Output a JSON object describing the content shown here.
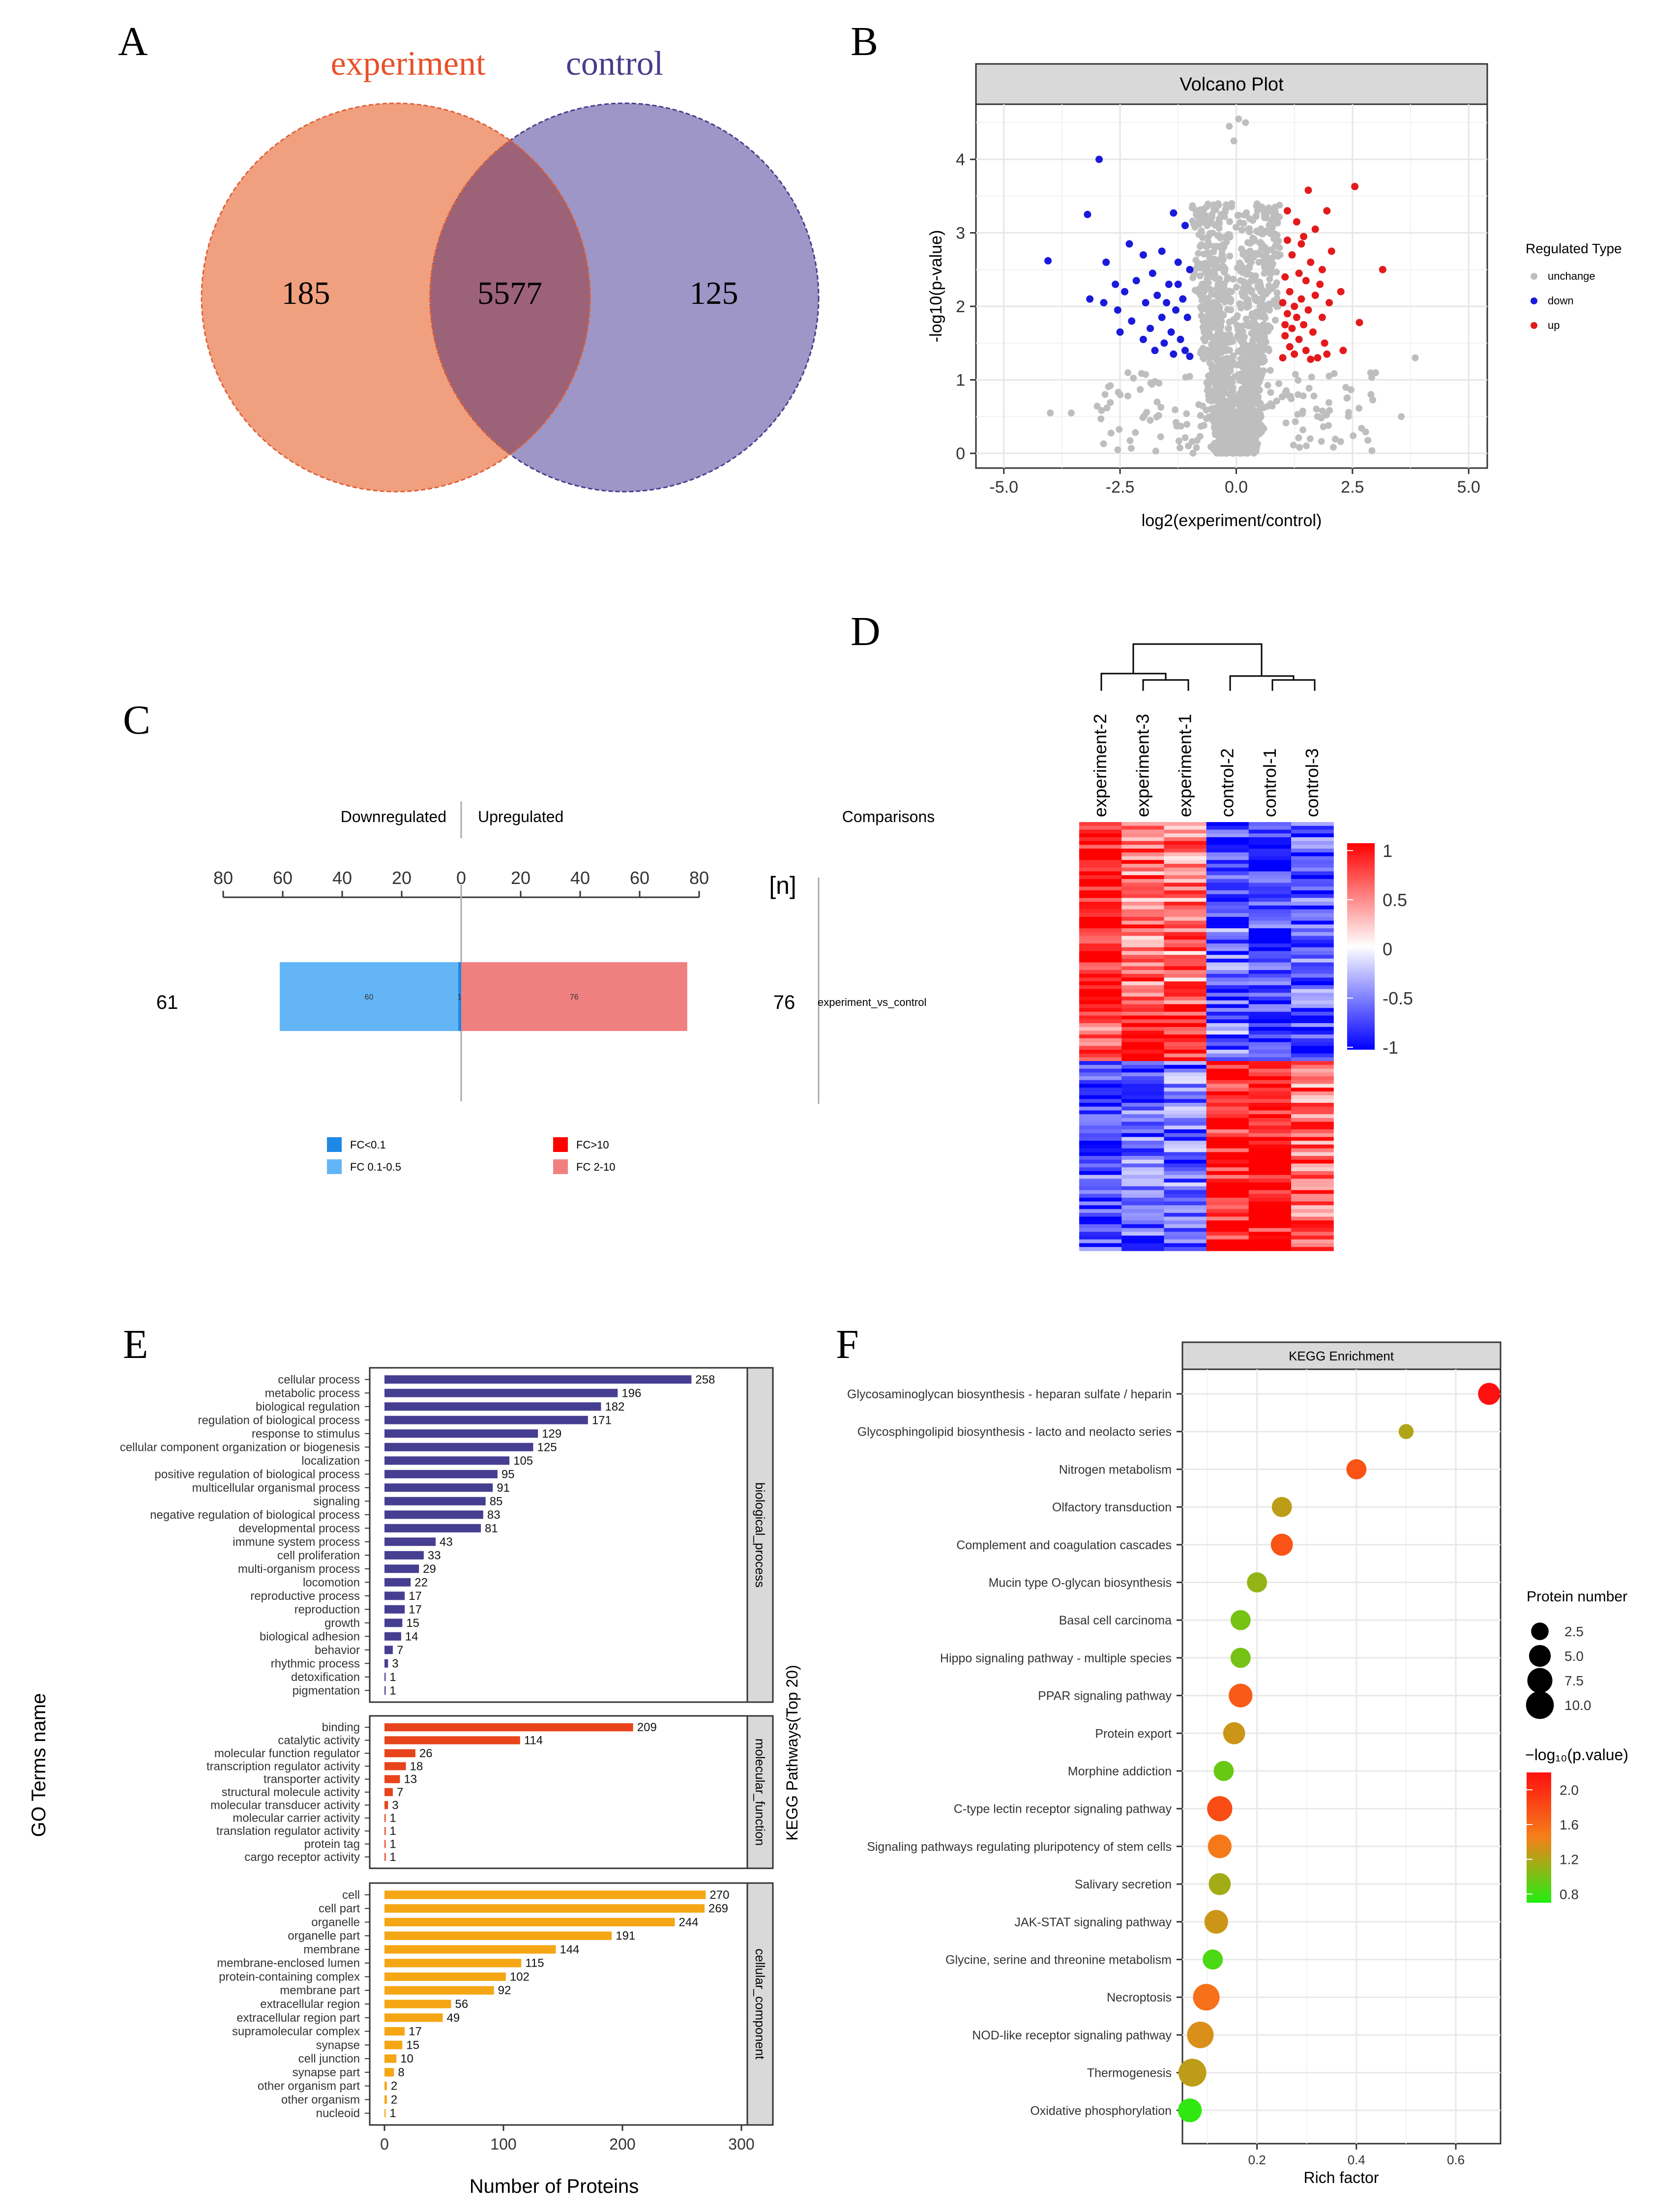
{
  "panel_labels": [
    "A",
    "B",
    "C",
    "D",
    "E",
    "F"
  ],
  "chart_data": [
    {
      "panel": "A",
      "type": "venn",
      "sets": [
        {
          "name": "experiment",
          "only": 185,
          "color": "#f0a07e",
          "label_color": "#e8502a"
        },
        {
          "name": "control",
          "only": 125,
          "color": "#9d96c6",
          "label_color": "#4a3c8c"
        }
      ],
      "intersection": 5577,
      "intersection_color": "#9b6278"
    },
    {
      "panel": "B",
      "type": "scatter",
      "title": "Volcano Plot",
      "xlabel": "log2(experiment/control)",
      "ylabel": "-log10(p-value)",
      "xlim": [
        -5.6,
        5.4
      ],
      "ylim": [
        -0.2,
        4.75
      ],
      "xticks": [
        -5.0,
        -2.5,
        0.0,
        2.5,
        5.0
      ],
      "xtick_labels": [
        "-5.0",
        "-2.5",
        "0.0",
        "2.5",
        "5.0"
      ],
      "yticks": [
        0,
        1,
        2,
        3,
        4
      ],
      "ytick_labels": [
        "0",
        "1",
        "2",
        "3",
        "4"
      ],
      "legend_title": "Regulated Type",
      "legend": [
        {
          "name": "unchange",
          "color": "#bebebe"
        },
        {
          "name": "down",
          "color": "#1a1adb"
        },
        {
          "name": "up",
          "color": "#e31a1c"
        }
      ],
      "series": [
        {
          "name": "up",
          "color": "#e31a1c",
          "points": [
            [
              2.55,
              3.63
            ],
            [
              3.15,
              2.5
            ],
            [
              2.65,
              1.78
            ],
            [
              1.55,
              3.58
            ],
            [
              1.95,
              3.3
            ],
            [
              1.3,
              3.15
            ],
            [
              1.1,
              3.3
            ],
            [
              1.7,
              3.05
            ],
            [
              1.4,
              2.85
            ],
            [
              2.05,
              2.75
            ],
            [
              1.2,
              2.7
            ],
            [
              1.6,
              2.6
            ],
            [
              1.85,
              2.5
            ],
            [
              1.35,
              2.45
            ],
            [
              1.05,
              2.4
            ],
            [
              1.5,
              2.35
            ],
            [
              2.25,
              2.2
            ],
            [
              1.15,
              2.2
            ],
            [
              1.7,
              2.15
            ],
            [
              1.4,
              2.1
            ],
            [
              2.0,
              2.05
            ],
            [
              1.25,
              2.0
            ],
            [
              1.55,
              1.95
            ],
            [
              1.1,
              1.9
            ],
            [
              1.85,
              1.85
            ],
            [
              1.3,
              1.85
            ],
            [
              1.45,
              1.75
            ],
            [
              1.2,
              1.7
            ],
            [
              1.65,
              1.65
            ],
            [
              1.05,
              1.6
            ],
            [
              1.35,
              1.55
            ],
            [
              1.9,
              1.5
            ],
            [
              1.15,
              1.45
            ],
            [
              1.5,
              1.4
            ],
            [
              1.95,
              1.35
            ],
            [
              1.25,
              1.35
            ],
            [
              1.75,
              1.3
            ],
            [
              1.0,
              1.3
            ],
            [
              1.6,
              1.28
            ],
            [
              2.3,
              1.4
            ],
            [
              1.1,
              2.9
            ],
            [
              1.45,
              2.95
            ],
            [
              1.0,
              2.05
            ],
            [
              1.05,
              1.75
            ],
            [
              1.8,
              2.3
            ]
          ]
        },
        {
          "name": "down",
          "color": "#1a1adb",
          "points": [
            [
              -2.95,
              4.0
            ],
            [
              -3.2,
              3.25
            ],
            [
              -4.05,
              2.62
            ],
            [
              -2.8,
              2.6
            ],
            [
              -1.35,
              3.27
            ],
            [
              -1.1,
              3.1
            ],
            [
              -2.3,
              2.85
            ],
            [
              -1.6,
              2.75
            ],
            [
              -2.0,
              2.7
            ],
            [
              -1.25,
              2.6
            ],
            [
              -2.6,
              2.3
            ],
            [
              -1.8,
              2.45
            ],
            [
              -1.0,
              2.5
            ],
            [
              -2.15,
              2.35
            ],
            [
              -1.45,
              2.3
            ],
            [
              -3.15,
              2.1
            ],
            [
              -2.4,
              2.2
            ],
            [
              -1.7,
              2.15
            ],
            [
              -1.15,
              2.1
            ],
            [
              -2.85,
              2.05
            ],
            [
              -1.95,
              2.05
            ],
            [
              -1.3,
              1.95
            ],
            [
              -2.55,
              1.95
            ],
            [
              -1.6,
              1.85
            ],
            [
              -1.05,
              1.85
            ],
            [
              -2.25,
              1.8
            ],
            [
              -1.85,
              1.7
            ],
            [
              -1.4,
              1.65
            ],
            [
              -2.0,
              1.55
            ],
            [
              -1.2,
              1.55
            ],
            [
              -1.55,
              1.5
            ],
            [
              -1.75,
              1.4
            ],
            [
              -1.1,
              1.4
            ],
            [
              -1.35,
              1.35
            ],
            [
              -1.0,
              1.32
            ],
            [
              -2.5,
              1.65
            ],
            [
              -1.25,
              2.3
            ],
            [
              -1.5,
              2.05
            ]
          ]
        }
      ]
    },
    {
      "panel": "C",
      "type": "bar",
      "header_down": "Downregulated",
      "header_up": "Upregulated",
      "header_comparisons": "Comparisons",
      "n_label": "[n]",
      "xticks": [
        80,
        60,
        40,
        20,
        0,
        20,
        40,
        60,
        80
      ],
      "categories": [
        "experiment_vs_control"
      ],
      "total_down": 61,
      "total_up": 76,
      "series": [
        {
          "name": "FC<0.1",
          "color": "#1e88e5",
          "values": [
            1
          ],
          "direction": "down",
          "label": "1"
        },
        {
          "name": "FC 0.1-0.5",
          "color": "#64b5f6",
          "values": [
            60
          ],
          "direction": "down",
          "label": "60"
        },
        {
          "name": "FC>10",
          "color": "#ff0000",
          "values": [
            0
          ],
          "direction": "up",
          "label": ""
        },
        {
          "name": "FC 2-10",
          "color": "#f08080",
          "values": [
            76
          ],
          "direction": "up",
          "label": "76"
        }
      ]
    },
    {
      "panel": "D",
      "type": "heatmap",
      "columns": [
        "experiment-2",
        "experiment-3",
        "experiment-1",
        "control-2",
        "control-1",
        "control-3"
      ],
      "scale_ticks": [
        1,
        0.5,
        0,
        -0.5,
        -1
      ],
      "scale_tick_labels": [
        "1",
        "0.5",
        "0",
        "-0.5",
        "-1"
      ],
      "colors": {
        "high": "#ff0000",
        "mid": "#ffffff",
        "low": "#0000ff"
      },
      "row_blocks": [
        {
          "rows": 48,
          "values": [
            1.0,
            0.55,
            0.5,
            -0.6,
            -0.8,
            -0.65
          ]
        },
        {
          "rows": 15,
          "values": [
            0.55,
            0.85,
            0.9,
            -0.55,
            -0.8,
            -0.8
          ]
        },
        {
          "rows": 50,
          "values": [
            -0.7,
            -0.6,
            -0.55,
            0.9,
            0.85,
            0.55
          ]
        }
      ]
    },
    {
      "panel": "E",
      "type": "bar",
      "xlabel": "Number of Proteins",
      "ylabel": "GO Terms name",
      "xlim": [
        0,
        310
      ],
      "xticks": [
        0,
        100,
        200,
        300
      ],
      "groups": [
        {
          "name": "biological_process",
          "color": "#463e91",
          "categories": [
            "cellular process",
            "metabolic process",
            "biological regulation",
            "regulation of biological process",
            "response to stimulus",
            "cellular component organization or biogenesis",
            "localization",
            "positive regulation of biological process",
            "multicellular organismal process",
            "signaling",
            "negative regulation of biological process",
            "developmental process",
            "immune system process",
            "cell proliferation",
            "multi-organism process",
            "locomotion",
            "reproductive process",
            "reproduction",
            "growth",
            "biological adhesion",
            "behavior",
            "rhythmic process",
            "detoxification",
            "pigmentation"
          ],
          "values": [
            258,
            196,
            182,
            171,
            129,
            125,
            105,
            95,
            91,
            85,
            83,
            81,
            43,
            33,
            29,
            22,
            17,
            17,
            15,
            14,
            7,
            3,
            1,
            1
          ]
        },
        {
          "name": "molecular_function",
          "color": "#e8441c",
          "categories": [
            "binding",
            "catalytic activity",
            "molecular function regulator",
            "transcription regulator activity",
            "transporter activity",
            "structural molecule activity",
            "molecular transducer activity",
            "molecular carrier activity",
            "translation regulator activity",
            "protein tag",
            "cargo receptor activity"
          ],
          "values": [
            209,
            114,
            26,
            18,
            13,
            7,
            3,
            1,
            1,
            1,
            1
          ]
        },
        {
          "name": "cellular_component",
          "color": "#f5a614",
          "categories": [
            "cell",
            "cell part",
            "organelle",
            "organelle part",
            "membrane",
            "membrane-enclosed lumen",
            "protein-containing complex",
            "membrane part",
            "extracellular region",
            "extracellular region part",
            "supramolecular complex",
            "synapse",
            "cell junction",
            "synapse part",
            "other organism part",
            "other organism",
            "nucleoid"
          ],
          "values": [
            270,
            269,
            244,
            191,
            144,
            115,
            102,
            92,
            56,
            49,
            17,
            15,
            10,
            8,
            2,
            2,
            1
          ]
        }
      ]
    },
    {
      "panel": "F",
      "type": "scatter",
      "title": "KEGG Enrichment",
      "xlabel": "Rich factor",
      "ylabel": "KEGG Pathways(Top 20)",
      "xlim": [
        0.05,
        0.69
      ],
      "xticks": [
        0.2,
        0.4,
        0.6
      ],
      "xtick_labels": [
        "0.2",
        "0.4",
        "0.6"
      ],
      "size_legend_title": "Protein number",
      "size_legend": [
        2.5,
        5.0,
        7.5,
        10.0
      ],
      "size_legend_labels": [
        "2.5",
        "5.0",
        "7.5",
        "10.0"
      ],
      "color_legend_title": "−log₁₀(p.value)",
      "color_legend_ticks": [
        2.0,
        1.6,
        1.2,
        0.8
      ],
      "color_legend_labels": [
        "2.0",
        "1.6",
        "1.2",
        "0.8"
      ],
      "color_range": [
        0.7,
        2.2
      ],
      "color_scale": [
        "#22ee11",
        "#f5801a",
        "#ff1010"
      ],
      "categories": [
        "Glycosaminoglycan biosynthesis - heparan sulfate / heparin",
        "Glycosphingolipid biosynthesis - lacto and neolacto series",
        "Nitrogen metabolism",
        "Olfactory transduction",
        "Complement and coagulation cascades",
        "Mucin type O-glycan biosynthesis",
        "Basal cell carcinoma",
        "Hippo signaling pathway - multiple species",
        "PPAR signaling pathway",
        "Protein export",
        "Morphine addiction",
        "C-type lectin receptor signaling pathway",
        "Signaling pathways regulating pluripotency of stem cells",
        "Salivary secretion",
        "JAK-STAT signaling pathway",
        "Glycine, serine and threonine metabolism",
        "Necroptosis",
        "NOD-like receptor signaling pathway",
        "Thermogenesis",
        "Oxidative phosphorylation"
      ],
      "rich_factor": [
        0.667,
        0.5,
        0.4,
        0.25,
        0.25,
        0.2,
        0.167,
        0.167,
        0.167,
        0.154,
        0.133,
        0.125,
        0.125,
        0.125,
        0.118,
        0.111,
        0.098,
        0.086,
        0.07,
        0.065
      ],
      "protein_number": [
        4,
        1,
        3,
        3,
        4,
        3,
        3,
        3,
        5,
        4,
        3,
        6,
        5,
        4,
        5,
        3,
        7,
        7,
        8,
        5
      ],
      "neg_log10_p": [
        2.2,
        1.2,
        1.75,
        1.25,
        1.75,
        1.1,
        1.0,
        1.0,
        1.7,
        1.3,
        0.95,
        1.8,
        1.5,
        1.15,
        1.3,
        0.85,
        1.55,
        1.35,
        1.25,
        0.75
      ]
    }
  ]
}
